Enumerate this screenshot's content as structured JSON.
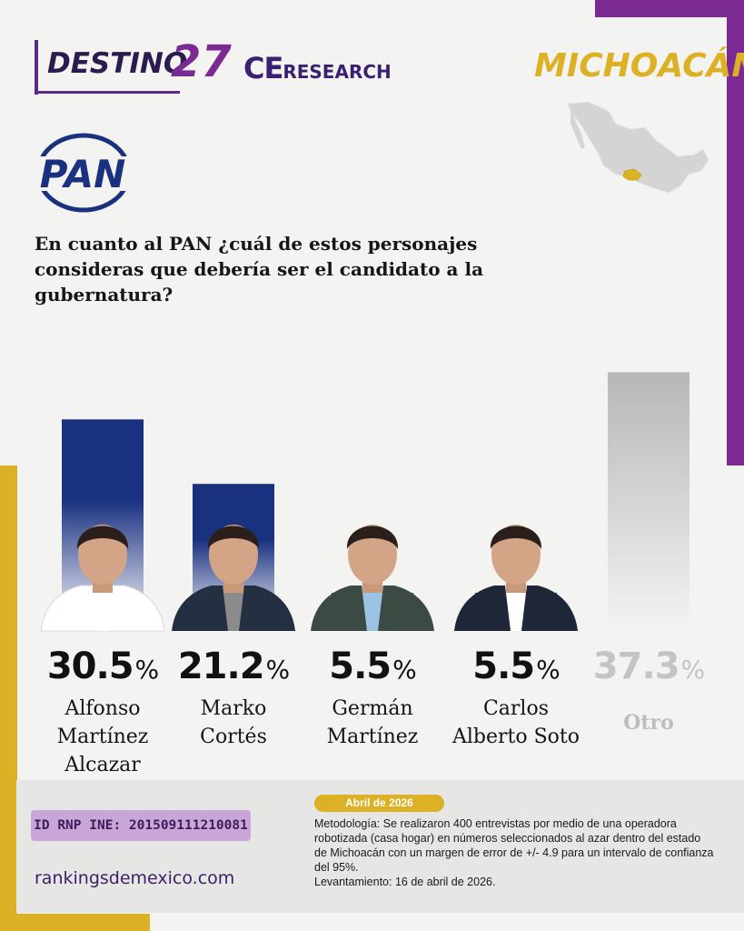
{
  "header": {
    "destino_text": "DESTINO",
    "destino_number": "27",
    "ce_text": "CE",
    "research_text": "RESEARCH",
    "state": "MICHOACÁN",
    "map_icon": "mexico-map-icon",
    "highlight_color": "#ddb125"
  },
  "party": {
    "logo_text": "PAN",
    "logo_icon": "pan-party-logo",
    "color": "#1a3180"
  },
  "question": "En cuanto al PAN ¿cuál de estos personajes consideras que debería ser el candidato a la gubernatura?",
  "chart_data": {
    "type": "bar",
    "categories": [
      "Alfonso Martínez Alcazar",
      "Marko Cortés",
      "Germán Martínez",
      "Carlos Alberto Soto",
      "Otro"
    ],
    "values": [
      30.5,
      21.2,
      5.5,
      5.5,
      37.3
    ],
    "value_labels": [
      "30.5",
      "21.2",
      "5.5",
      "5.5",
      "37.3"
    ],
    "value_suffix": "%",
    "name_labels": [
      "Alfonso\nMartínez\nAlcazar",
      "Marko\nCortés",
      "Germán\nMartínez",
      "Carlos\nAlberto Soto",
      "Otro"
    ],
    "bar_colors": [
      "#1a3180",
      "#1a3180",
      "#1a3180",
      "#1a3180",
      "#b9b9b9"
    ],
    "title": "",
    "xlabel": "",
    "ylabel": "",
    "ylim": [
      0,
      40
    ]
  },
  "footer": {
    "rnp": "ID RNP INE: 201509111210081",
    "website": "rankingsdemexico.com",
    "date": "Abril de 2026",
    "methodology": "Metodología: Se realizaron 400 entrevistas por medio de una operadora robotizada (casa hogar) en números seleccionados al azar dentro del estado de Michoacán con un margen de error de +/- 4.9 para un intervalo de confianza del 95%.",
    "fieldwork": "Levantamiento: 16 de abril de 2026."
  }
}
